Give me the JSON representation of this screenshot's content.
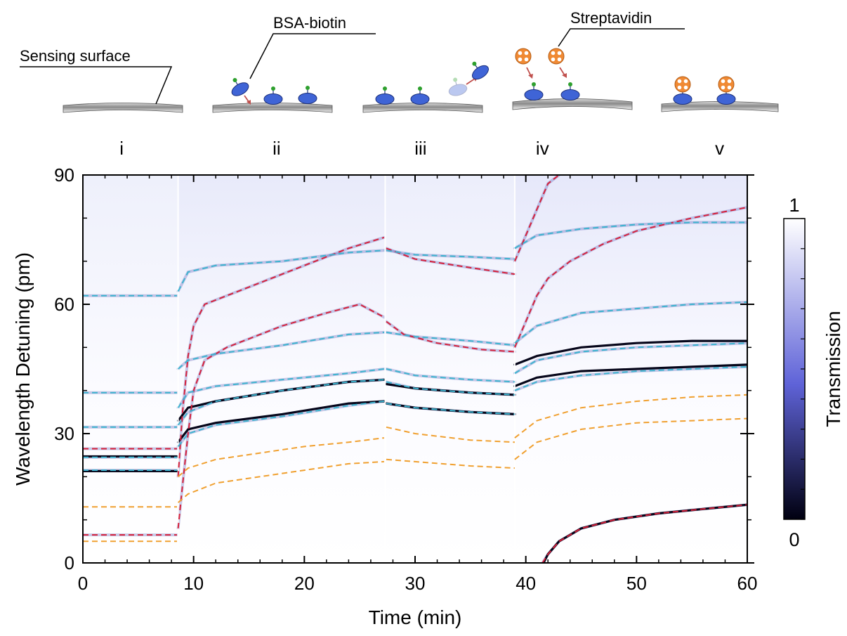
{
  "schematic": {
    "labels": {
      "sensing_surface": "Sensing surface",
      "bsa_biotin": "BSA-biotin",
      "streptavidin": "Streptavidin"
    },
    "stages": [
      "i",
      "ii",
      "iii",
      "iv",
      "v"
    ]
  },
  "colors": {
    "red": "#d6203a",
    "cyan": "#3cb4cf",
    "orange": "#f0a030",
    "map_high": "#ffffff",
    "map_mid": "#5f63d8",
    "map_low": "#000010",
    "bsa": "#3f64d6",
    "biotin": "#2ea02e",
    "strep": "#f08a34"
  },
  "chart_data": {
    "type": "heatmap",
    "xlabel": "Time (min)",
    "ylabel": "Wavelength Detuning (pm)",
    "xlim": [
      0,
      60
    ],
    "ylim": [
      0,
      90
    ],
    "xticks": [
      "0",
      "10",
      "20",
      "30",
      "40",
      "50",
      "60"
    ],
    "yticks": [
      "0",
      "30",
      "60",
      "90"
    ],
    "colorbar": {
      "label": "Transmission",
      "min_label": "0",
      "max_label": "1",
      "range": [
        0,
        1
      ]
    },
    "segment_boundaries": [
      8.6,
      27.3,
      39.0
    ],
    "stage_label_x": [
      3.5,
      17.5,
      30.5,
      41.5,
      57.5
    ],
    "series": [
      {
        "color": "red",
        "points": [
          [
            0,
            6.5
          ],
          [
            8.5,
            6.5
          ]
        ]
      },
      {
        "color": "red",
        "points": [
          [
            0,
            26.5
          ],
          [
            8.5,
            26.5
          ]
        ]
      },
      {
        "color": "red",
        "points": [
          [
            8.6,
            8
          ],
          [
            9,
            18
          ],
          [
            9.5,
            30
          ],
          [
            10,
            40
          ],
          [
            11,
            47
          ],
          [
            13,
            50
          ],
          [
            18,
            55
          ],
          [
            22,
            58
          ],
          [
            25,
            60
          ],
          [
            27.2,
            57
          ]
        ]
      },
      {
        "color": "red",
        "points": [
          [
            8.6,
            20
          ],
          [
            9,
            35
          ],
          [
            9.5,
            48
          ],
          [
            10,
            55
          ],
          [
            11,
            60
          ],
          [
            15,
            64
          ],
          [
            20,
            69
          ],
          [
            24,
            73
          ],
          [
            27.2,
            75.5
          ]
        ]
      },
      {
        "color": "red",
        "points": [
          [
            27.4,
            73
          ],
          [
            30,
            70.5
          ],
          [
            35,
            68.5
          ],
          [
            39,
            67
          ]
        ]
      },
      {
        "color": "red",
        "points": [
          [
            27.4,
            56
          ],
          [
            29,
            53
          ],
          [
            32,
            51
          ],
          [
            36,
            49.5
          ],
          [
            39,
            49
          ]
        ]
      },
      {
        "color": "red",
        "points": [
          [
            41.5,
            0
          ],
          [
            42,
            2
          ],
          [
            43,
            5
          ],
          [
            45,
            8
          ],
          [
            48,
            10
          ],
          [
            52,
            11.5
          ],
          [
            56,
            12.5
          ],
          [
            60,
            13.5
          ]
        ]
      },
      {
        "color": "red",
        "points": [
          [
            39,
            70
          ],
          [
            40,
            76
          ],
          [
            41,
            82
          ],
          [
            42,
            88
          ],
          [
            43,
            90
          ]
        ]
      },
      {
        "color": "red",
        "points": [
          [
            39,
            50
          ],
          [
            40,
            56
          ],
          [
            41,
            62
          ],
          [
            42,
            66
          ],
          [
            44,
            70
          ],
          [
            47,
            74
          ],
          [
            50,
            77
          ],
          [
            55,
            80
          ],
          [
            60,
            82.5
          ]
        ]
      },
      {
        "color": "cyan",
        "points": [
          [
            0,
            62
          ],
          [
            8.5,
            62
          ]
        ]
      },
      {
        "color": "cyan",
        "points": [
          [
            0,
            39.5
          ],
          [
            8.5,
            39.5
          ]
        ]
      },
      {
        "color": "cyan",
        "points": [
          [
            0,
            31.5
          ],
          [
            8.5,
            31.5
          ]
        ]
      },
      {
        "color": "cyan",
        "points": [
          [
            0,
            24.5
          ],
          [
            8.5,
            24.5
          ]
        ]
      },
      {
        "color": "cyan",
        "points": [
          [
            0,
            21.5
          ],
          [
            8.5,
            21.5
          ]
        ]
      },
      {
        "color": "cyan",
        "points": [
          [
            8.6,
            63
          ],
          [
            9.5,
            67.5
          ],
          [
            12,
            69
          ],
          [
            18,
            70
          ],
          [
            24,
            72
          ],
          [
            27.2,
            72.5
          ]
        ]
      },
      {
        "color": "cyan",
        "points": [
          [
            8.6,
            45
          ],
          [
            9.5,
            47
          ],
          [
            12,
            48.5
          ],
          [
            18,
            50.5
          ],
          [
            24,
            53
          ],
          [
            27.2,
            53.5
          ]
        ]
      },
      {
        "color": "cyan",
        "points": [
          [
            8.6,
            36
          ],
          [
            9.5,
            39.5
          ],
          [
            12,
            41
          ],
          [
            18,
            42.5
          ],
          [
            24,
            44
          ],
          [
            27.2,
            45
          ]
        ]
      },
      {
        "color": "cyan",
        "points": [
          [
            8.6,
            32
          ],
          [
            9.5,
            35
          ],
          [
            12,
            37.5
          ],
          [
            18,
            40
          ],
          [
            24,
            42
          ],
          [
            27.2,
            42.5
          ]
        ]
      },
      {
        "color": "cyan",
        "points": [
          [
            8.6,
            27
          ],
          [
            9.5,
            30
          ],
          [
            12,
            32
          ],
          [
            18,
            34
          ],
          [
            24,
            36.5
          ],
          [
            27.2,
            37.5
          ]
        ]
      },
      {
        "color": "cyan",
        "points": [
          [
            27.4,
            72.5
          ],
          [
            30,
            71.5
          ],
          [
            35,
            71
          ],
          [
            39,
            70.5
          ]
        ]
      },
      {
        "color": "cyan",
        "points": [
          [
            27.4,
            53.5
          ],
          [
            30,
            52.5
          ],
          [
            35,
            51.5
          ],
          [
            39,
            50.5
          ]
        ]
      },
      {
        "color": "cyan",
        "points": [
          [
            27.4,
            45
          ],
          [
            30,
            43.5
          ],
          [
            35,
            42.5
          ],
          [
            39,
            42
          ]
        ]
      },
      {
        "color": "cyan",
        "points": [
          [
            27.4,
            42
          ],
          [
            30,
            40.5
          ],
          [
            35,
            39.5
          ],
          [
            39,
            39
          ]
        ]
      },
      {
        "color": "cyan",
        "points": [
          [
            27.4,
            37
          ],
          [
            30,
            36
          ],
          [
            35,
            35
          ],
          [
            39,
            34.5
          ]
        ]
      },
      {
        "color": "cyan",
        "points": [
          [
            39,
            73
          ],
          [
            41,
            76
          ],
          [
            45,
            77.5
          ],
          [
            50,
            78.5
          ],
          [
            55,
            79
          ],
          [
            60,
            79
          ]
        ]
      },
      {
        "color": "cyan",
        "points": [
          [
            39,
            51
          ],
          [
            41,
            55
          ],
          [
            45,
            58
          ],
          [
            50,
            59
          ],
          [
            55,
            60
          ],
          [
            60,
            60.5
          ]
        ]
      },
      {
        "color": "cyan",
        "points": [
          [
            39,
            44
          ],
          [
            41,
            47
          ],
          [
            45,
            49
          ],
          [
            50,
            50
          ],
          [
            55,
            50.5
          ],
          [
            60,
            51
          ]
        ]
      },
      {
        "color": "cyan",
        "points": [
          [
            39,
            40
          ],
          [
            41,
            42
          ],
          [
            45,
            43.5
          ],
          [
            50,
            44.5
          ],
          [
            55,
            45
          ],
          [
            60,
            45.5
          ]
        ]
      },
      {
        "color": "orange",
        "points": [
          [
            0,
            13
          ],
          [
            8.5,
            13
          ]
        ]
      },
      {
        "color": "orange",
        "points": [
          [
            0,
            5
          ],
          [
            8.5,
            5
          ]
        ]
      },
      {
        "color": "orange",
        "points": [
          [
            8.6,
            14
          ],
          [
            9.5,
            16
          ],
          [
            12,
            18.5
          ],
          [
            16,
            20
          ],
          [
            20,
            21.5
          ],
          [
            24,
            23
          ],
          [
            27.2,
            23.5
          ]
        ]
      },
      {
        "color": "orange",
        "points": [
          [
            8.6,
            20
          ],
          [
            9.5,
            22
          ],
          [
            12,
            24
          ],
          [
            16,
            25.5
          ],
          [
            20,
            27
          ],
          [
            24,
            28
          ],
          [
            27.2,
            29
          ]
        ]
      },
      {
        "color": "orange",
        "points": [
          [
            27.4,
            31.5
          ],
          [
            30,
            30
          ],
          [
            35,
            28.5
          ],
          [
            39,
            28
          ]
        ]
      },
      {
        "color": "orange",
        "points": [
          [
            27.4,
            24
          ],
          [
            30,
            23.5
          ],
          [
            35,
            22.5
          ],
          [
            39,
            22
          ]
        ]
      },
      {
        "color": "orange",
        "points": [
          [
            39,
            24
          ],
          [
            41,
            28
          ],
          [
            45,
            31
          ],
          [
            50,
            32.5
          ],
          [
            55,
            33
          ],
          [
            60,
            33.5
          ]
        ]
      },
      {
        "color": "orange",
        "points": [
          [
            39,
            29
          ],
          [
            41,
            33
          ],
          [
            45,
            36
          ],
          [
            50,
            37.5
          ],
          [
            55,
            38.5
          ],
          [
            60,
            39
          ]
        ]
      }
    ]
  }
}
